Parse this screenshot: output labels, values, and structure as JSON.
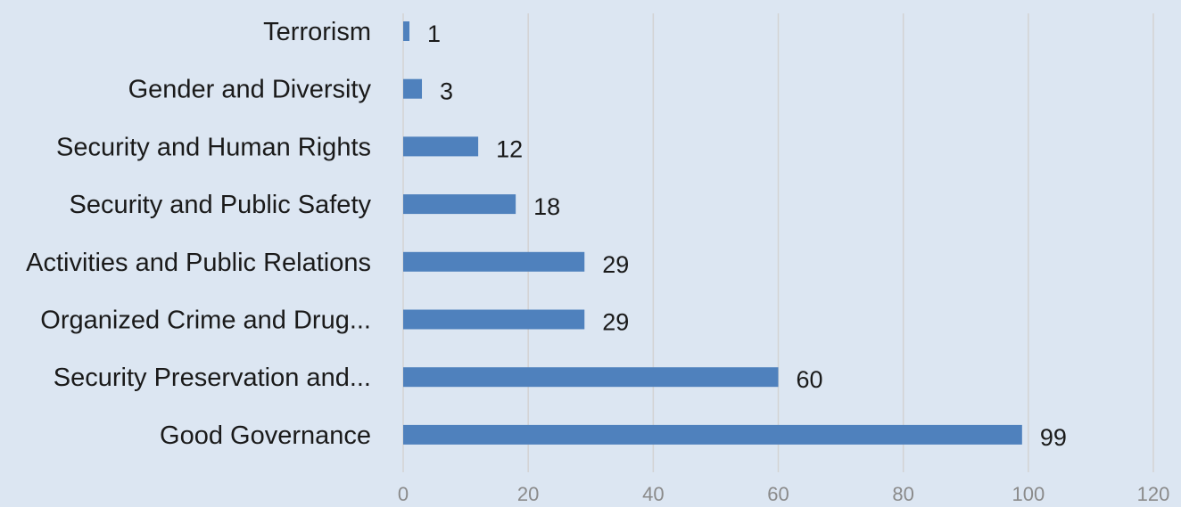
{
  "colors": {
    "background": "#dce6f2",
    "bar": "#4f81bd",
    "grid": "#d3d3d3",
    "text": "#1a1a1a",
    "tick_text": "#8a8a8a"
  },
  "chart_data": {
    "type": "bar",
    "orientation": "horizontal",
    "categories": [
      "Terrorism",
      "Gender and Diversity",
      "Security and Human Rights",
      "Security and Public Safety",
      "Activities and Public Relations",
      "Organized Crime and Drug...",
      "Security Preservation and...",
      "Good Governance"
    ],
    "values": [
      1,
      3,
      12,
      18,
      29,
      29,
      60,
      99
    ],
    "data_labels": [
      "1",
      "3",
      "12",
      "18",
      "29",
      "29",
      "60",
      "99"
    ],
    "xlim": [
      0,
      120
    ],
    "xticks": [
      0,
      20,
      40,
      60,
      80,
      100,
      120
    ],
    "xtick_labels": [
      "0",
      "20",
      "40",
      "60",
      "80",
      "100",
      "120"
    ],
    "grid": true,
    "legend": "none"
  }
}
